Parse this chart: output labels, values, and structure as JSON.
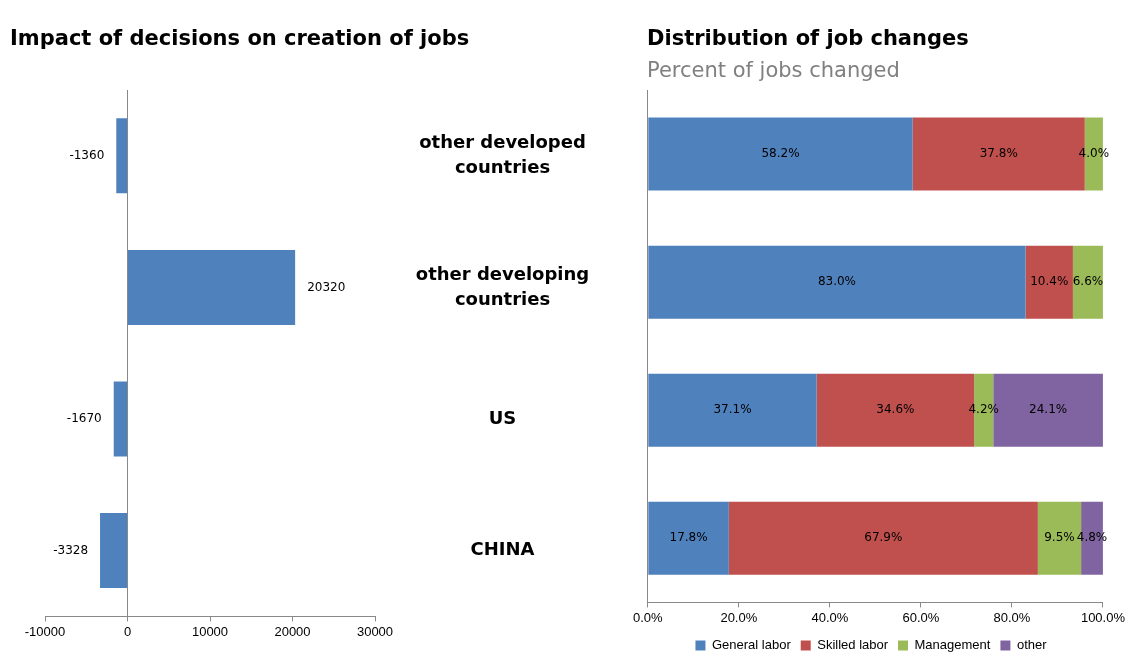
{
  "chart_data": [
    {
      "type": "bar",
      "orientation": "horizontal",
      "title": "Impact of decisions on creation of jobs",
      "categories": [
        "other developed countries",
        "other developing countries",
        "US",
        "CHINA"
      ],
      "values": [
        -1360,
        20320,
        -1670,
        -3328
      ],
      "color": "#4f81bd",
      "data_labels": true,
      "xlim": [
        -10000,
        30000
      ],
      "xticks": [
        -10000,
        0,
        10000,
        20000,
        30000
      ]
    },
    {
      "type": "bar",
      "orientation": "horizontal",
      "stacked": true,
      "title": "Distribution of job changes",
      "subtitle": "Percent of jobs changed",
      "categories": [
        null,
        null,
        null,
        null
      ],
      "series": [
        {
          "name": "General labor",
          "color": "#4f81bd",
          "values": [
            58.2,
            83.0,
            37.1,
            17.8
          ],
          "value_labels": [
            "58.2%",
            "83.0%",
            "37.1%",
            "17.8%"
          ]
        },
        {
          "name": "Skilled labor",
          "color": "#c0504d",
          "values": [
            37.8,
            10.4,
            34.6,
            67.9
          ],
          "value_labels": [
            "37.8%",
            "10.4%",
            "34.6%",
            "67.9%"
          ]
        },
        {
          "name": "Management",
          "color": "#9bbb59",
          "values": [
            4.0,
            6.6,
            4.2,
            9.5
          ],
          "value_labels": [
            "4.0%",
            "6.6%",
            "4.2%",
            "9.5%"
          ]
        },
        {
          "name": "other",
          "color": "#8064a2",
          "values": [
            0,
            0,
            24.1,
            4.8
          ],
          "value_labels": [
            null,
            null,
            "24.1%",
            "4.8%"
          ]
        }
      ],
      "xlim": [
        0,
        100
      ],
      "xticks": [
        {
          "value": 0,
          "label": "0.0%"
        },
        {
          "value": 20,
          "label": "20.0%"
        },
        {
          "value": 40,
          "label": "40.0%"
        },
        {
          "value": 60,
          "label": "60.0%"
        },
        {
          "value": 80,
          "label": "80.0%"
        },
        {
          "value": 100,
          "label": "100.0%"
        }
      ],
      "tick_labels": "x",
      "legend": "bottom"
    }
  ]
}
